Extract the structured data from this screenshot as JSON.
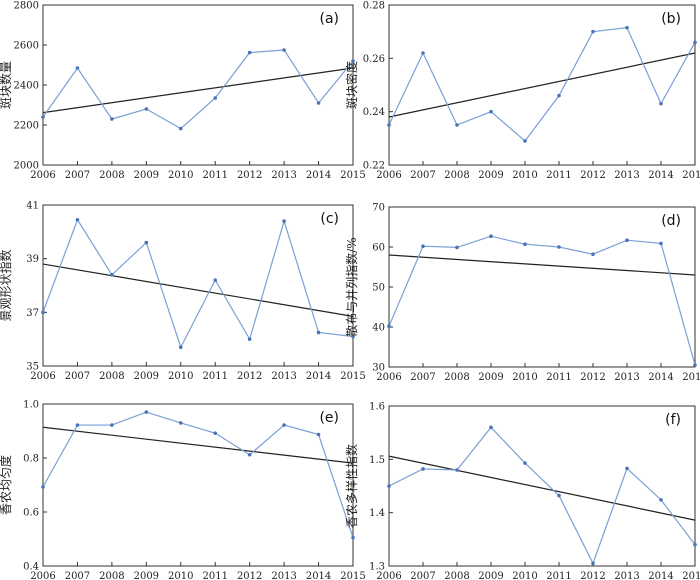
{
  "colors": {
    "series": "#7a9fd6",
    "point": "#4a73b8",
    "trend": "#222222",
    "axis": "#333333"
  },
  "chart_data": [
    {
      "type": "line",
      "panel_label": "(a)",
      "ylabel": "斑块数量",
      "x": [
        2006,
        2007,
        2008,
        2009,
        2010,
        2011,
        2012,
        2013,
        2014,
        2015
      ],
      "values": [
        2240,
        2485,
        2230,
        2280,
        2182,
        2335,
        2562,
        2575,
        2310,
        2520
      ],
      "trend": [
        2262,
        2485
      ],
      "ylim": [
        2000,
        2800
      ],
      "yticks": [
        "2000",
        "2200",
        "2400",
        "2600",
        "2800"
      ]
    },
    {
      "type": "line",
      "panel_label": "(b)",
      "ylabel": "斑块密度",
      "x": [
        2006,
        2007,
        2008,
        2009,
        2010,
        2011,
        2012,
        2013,
        2014,
        2015
      ],
      "values": [
        0.235,
        0.262,
        0.235,
        0.24,
        0.229,
        0.246,
        0.27,
        0.2715,
        0.243,
        0.266
      ],
      "trend": [
        0.238,
        0.262
      ],
      "ylim": [
        0.22,
        0.28
      ],
      "yticks": [
        "0.22",
        "0.24",
        "0.26",
        "0.28"
      ]
    },
    {
      "type": "line",
      "panel_label": "(c)",
      "ylabel": "景观形状指数",
      "x": [
        2006,
        2007,
        2008,
        2009,
        2010,
        2011,
        2012,
        2013,
        2014,
        2015
      ],
      "values": [
        37.0,
        40.45,
        38.4,
        39.6,
        35.7,
        38.2,
        36.0,
        40.4,
        36.25,
        36.1
      ],
      "trend": [
        38.8,
        36.85
      ],
      "ylim": [
        35,
        41
      ],
      "yticks": [
        "35",
        "37",
        "39",
        "41"
      ]
    },
    {
      "type": "line",
      "panel_label": "(d)",
      "ylabel": "散布与并列指数/%",
      "x": [
        2006,
        2007,
        2008,
        2009,
        2010,
        2011,
        2012,
        2013,
        2014,
        2015
      ],
      "values": [
        40.2,
        60.2,
        59.9,
        62.7,
        60.7,
        60.0,
        58.2,
        61.7,
        60.9,
        30.5
      ],
      "trend": [
        58.0,
        53.0
      ],
      "ylim": [
        30,
        70
      ],
      "yticks": [
        "30",
        "40",
        "50",
        "60",
        "70"
      ]
    },
    {
      "type": "line",
      "panel_label": "(e)",
      "ylabel": "香农均匀度",
      "x": [
        2006,
        2007,
        2008,
        2009,
        2010,
        2011,
        2012,
        2013,
        2014,
        2015
      ],
      "values": [
        0.693,
        0.922,
        0.922,
        0.97,
        0.93,
        0.892,
        0.812,
        0.922,
        0.887,
        0.505
      ],
      "trend": [
        0.914,
        0.781
      ],
      "ylim": [
        0.4,
        1.0
      ],
      "yticks": [
        "0.4",
        "0.6",
        "0.8",
        "1.0"
      ]
    },
    {
      "type": "line",
      "panel_label": "(f)",
      "ylabel": "香农多样性指数",
      "x": [
        2006,
        2007,
        2008,
        2009,
        2010,
        2011,
        2012,
        2013,
        2014,
        2015
      ],
      "values": [
        1.45,
        1.482,
        1.48,
        1.56,
        1.493,
        1.432,
        1.305,
        1.483,
        1.424,
        1.34
      ],
      "trend": [
        1.506,
        1.386
      ],
      "ylim": [
        1.3,
        1.6
      ],
      "yticks": [
        "1.3",
        "1.4",
        "1.5",
        "1.6"
      ]
    }
  ]
}
